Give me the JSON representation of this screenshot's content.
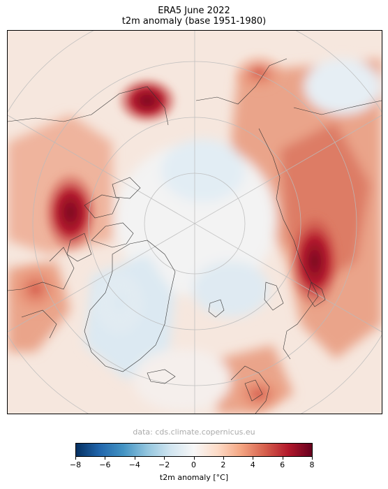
{
  "title_line1": "ERA5 June 2022",
  "title_line2": "t2m anomaly (base 1951-1980)",
  "source": "data: cds.climate.copernicus.eu",
  "colorbar": {
    "label": "t2m anomaly [°C]",
    "min": -8,
    "max": 8,
    "ticks": [
      -8,
      -6,
      -4,
      -2,
      0,
      2,
      4,
      6,
      8
    ],
    "tick_labels": [
      "−8",
      "−6",
      "−4",
      "−2",
      "0",
      "2",
      "4",
      "6",
      "8"
    ],
    "colors": [
      "#053061",
      "#2166ac",
      "#4393c3",
      "#92c5de",
      "#d1e5f0",
      "#f7f7f7",
      "#fddbc7",
      "#f4a582",
      "#d6604d",
      "#b2182b",
      "#67001f"
    ]
  },
  "map": {
    "projection": "North Polar Stereographic",
    "ocean_color": "#f6ece6"
  }
}
